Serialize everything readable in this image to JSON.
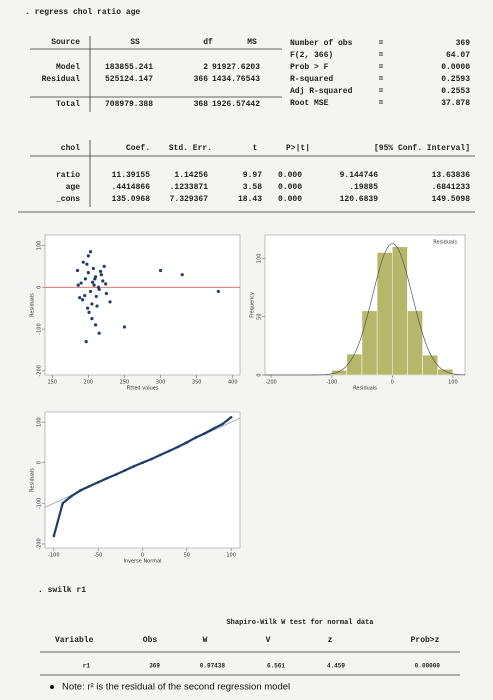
{
  "command": ". regress chol ratio age",
  "anova": {
    "headers": [
      "Source",
      "SS",
      "df",
      "MS"
    ],
    "rows": [
      [
        "Model",
        "183855.241",
        "2",
        "91927.6203"
      ],
      [
        "Residual",
        "525124.147",
        "366",
        "1434.76543"
      ],
      [
        "Total",
        "708979.388",
        "368",
        "1926.57442"
      ]
    ]
  },
  "stats": [
    [
      "Number of obs",
      "=",
      "369"
    ],
    [
      "F(2, 366)",
      "=",
      "64.07"
    ],
    [
      "Prob > F",
      "=",
      "0.0000"
    ],
    [
      "R-squared",
      "=",
      "0.2593"
    ],
    [
      "Adj R-squared",
      "=",
      "0.2553"
    ],
    [
      "Root MSE",
      "=",
      "37.878"
    ]
  ],
  "coef": {
    "headers": [
      "chol",
      "Coef.",
      "Std. Err.",
      "t",
      "P>|t|",
      "[95% Conf. Interval]"
    ],
    "rows": [
      [
        "ratio",
        "11.39155",
        "1.14256",
        "9.97",
        "0.000",
        "9.144746",
        "13.63836"
      ],
      [
        "age",
        ".4414866",
        ".1233871",
        "3.58",
        "0.000",
        ".19885",
        ".6841233"
      ],
      [
        "_cons",
        "135.0968",
        "7.329367",
        "18.43",
        "0.000",
        "120.6839",
        "149.5098"
      ]
    ]
  },
  "plots": [
    {
      "type": "scatter",
      "xlabel": "Fitted values",
      "ylabel": "Residuals",
      "xlim": [
        140,
        410
      ],
      "ylim": [
        -210,
        125
      ],
      "xticks": [
        150,
        200,
        250,
        300,
        350,
        400
      ],
      "yticks": [
        -200,
        -100,
        0,
        100
      ],
      "yline": 0,
      "x": [
        190,
        195,
        200,
        205,
        210,
        215,
        220,
        185,
        192,
        198,
        203,
        208,
        212,
        218,
        225,
        188,
        196,
        201,
        207,
        214,
        222,
        230,
        186,
        193,
        199,
        206,
        211,
        217,
        224,
        200,
        205,
        210,
        250,
        300,
        330,
        380,
        215,
        203,
        197,
        209
      ],
      "y": [
        10,
        -20,
        35,
        -40,
        25,
        -5,
        15,
        40,
        -30,
        55,
        -10,
        5,
        -45,
        30,
        -15,
        -25,
        20,
        -60,
        45,
        0,
        50,
        -35,
        5,
        60,
        -50,
        12,
        -22,
        38,
        8,
        75,
        -75,
        -90,
        -95,
        40,
        30,
        -10,
        -110,
        85,
        -130,
        20
      ]
    },
    {
      "type": "histogram",
      "title": "Residuals",
      "xlabel": "Residuals",
      "ylabel": "Frequency",
      "xlim": [
        -210,
        120
      ],
      "ylim": [
        0,
        120
      ],
      "xticks": [
        -200,
        -100,
        0,
        100
      ],
      "yticks": [
        0,
        50,
        100
      ],
      "bins": [
        -100,
        -75,
        -50,
        -25,
        0,
        25,
        50,
        75,
        100
      ],
      "counts": [
        4,
        18,
        55,
        105,
        110,
        55,
        17,
        5
      ]
    },
    {
      "type": "qq",
      "xlabel": "Inverse Normal",
      "ylabel": "Residuals",
      "xlim": [
        -110,
        110
      ],
      "ylim": [
        -210,
        125
      ],
      "xticks": [
        -100,
        -50,
        0,
        50,
        100
      ],
      "yticks": [
        -200,
        -100,
        0,
        100
      ],
      "x": [
        -100,
        -90,
        -80,
        -70,
        -60,
        -50,
        -40,
        -30,
        -20,
        -10,
        0,
        10,
        20,
        30,
        40,
        50,
        60,
        70,
        80,
        90,
        100
      ],
      "y": [
        -180,
        -100,
        -82,
        -68,
        -58,
        -48,
        -38,
        -29,
        -19,
        -9,
        0,
        9,
        19,
        29,
        39,
        50,
        62,
        72,
        84,
        95,
        112
      ]
    }
  ],
  "swilk": {
    "command": ". swilk r1",
    "title": "Shapiro-Wilk W test for normal data",
    "headers": [
      "Variable",
      "Obs",
      "W",
      "V",
      "z",
      "Prob>z"
    ],
    "row": [
      "r1",
      "369",
      "0.97438",
      "6.561",
      "4.459",
      "0.00000"
    ]
  },
  "note": "Note: r² is the residual of the second regression model"
}
